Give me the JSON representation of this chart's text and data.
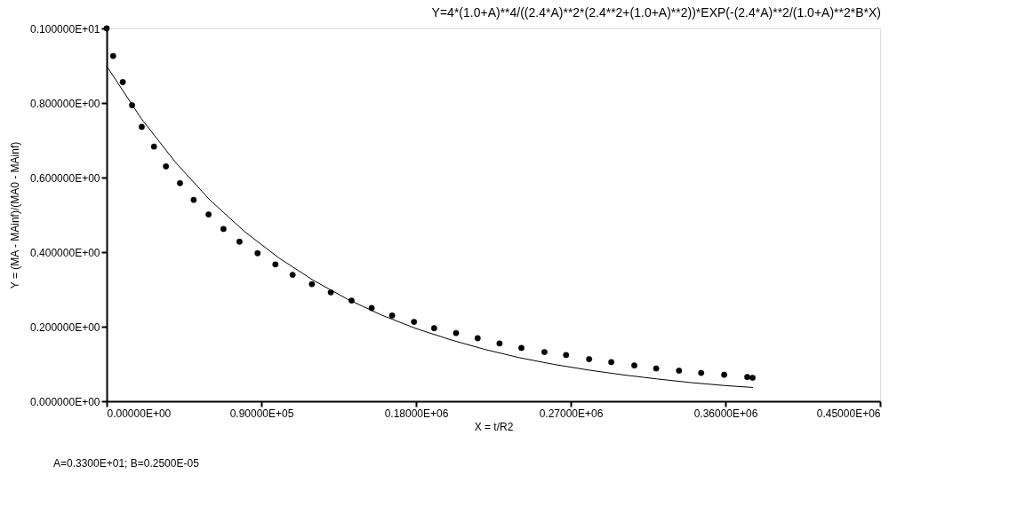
{
  "chart_data": {
    "type": "scatter",
    "title": "Y=4*(1.0+A)**4/((2.4*A)**2*(2.4**2+(1.0+A)**2))*EXP(-(2.4*A)**2/(1.0+A)**2*B*X)",
    "xlabel": "X = t/R2",
    "ylabel": "Y = (MA - MAinf)/(MA0 - MAinf)",
    "annotations": [
      "A=0.3300E+01;  B=0.2500E-05"
    ],
    "xlim": [
      0,
      450000
    ],
    "ylim": [
      0,
      1
    ],
    "xticks": [
      {
        "value": 0,
        "label": "0.00000E+00"
      },
      {
        "value": 90000,
        "label": "0.90000E+05"
      },
      {
        "value": 180000,
        "label": "0.18000E+06"
      },
      {
        "value": 270000,
        "label": "0.27000E+06"
      },
      {
        "value": 360000,
        "label": "0.36000E+06"
      },
      {
        "value": 450000,
        "label": "0.45000E+06"
      }
    ],
    "yticks": [
      {
        "value": 0,
        "label": "0.000000E+00"
      },
      {
        "value": 0.2,
        "label": "0.200000E+00"
      },
      {
        "value": 0.4,
        "label": "0.400000E+00"
      },
      {
        "value": 0.6,
        "label": "0.600000E+00"
      },
      {
        "value": 0.8,
        "label": "0.800000E+00"
      },
      {
        "value": 1,
        "label": "0.100000E+01"
      }
    ],
    "grid": false,
    "marker": "circle",
    "series": [
      {
        "color": "#000000",
        "x": [
          0,
          3770,
          9370,
          14770,
          20380,
          27500,
          34490,
          42640,
          50630,
          59290,
          67950,
          77270,
          87810,
          98160,
          108190,
          119400,
          130400,
          142480,
          154190,
          166080,
          178820,
          190530,
          203270,
          215850,
          228580,
          241310,
          254720,
          267300,
          280700,
          293600,
          307000,
          319700,
          333000,
          345900,
          359300,
          372700,
          375800
        ],
        "values": [
          1.0,
          0.926,
          0.856,
          0.794,
          0.736,
          0.683,
          0.63,
          0.585,
          0.54,
          0.501,
          0.462,
          0.428,
          0.397,
          0.367,
          0.339,
          0.314,
          0.292,
          0.27,
          0.25,
          0.23,
          0.213,
          0.196,
          0.183,
          0.169,
          0.155,
          0.143,
          0.132,
          0.124,
          0.113,
          0.105,
          0.096,
          0.088,
          0.082,
          0.076,
          0.071,
          0.065,
          0.063
        ]
      },
      {
        "type": "line",
        "color": "#000000",
        "line_style": "solid",
        "marker": "none",
        "x": [
          0,
          20000,
          40000,
          60000,
          80000,
          100000,
          120000,
          140000,
          160000,
          180000,
          200000,
          220000,
          240000,
          260000,
          280000,
          300000,
          320000,
          340000,
          360000,
          376000
        ],
        "values": [
          0.899,
          0.759,
          0.641,
          0.54,
          0.456,
          0.385,
          0.325,
          0.274,
          0.231,
          0.195,
          0.165,
          0.139,
          0.117,
          0.099,
          0.084,
          0.071,
          0.06,
          0.05,
          0.042,
          0.037
        ]
      }
    ]
  }
}
